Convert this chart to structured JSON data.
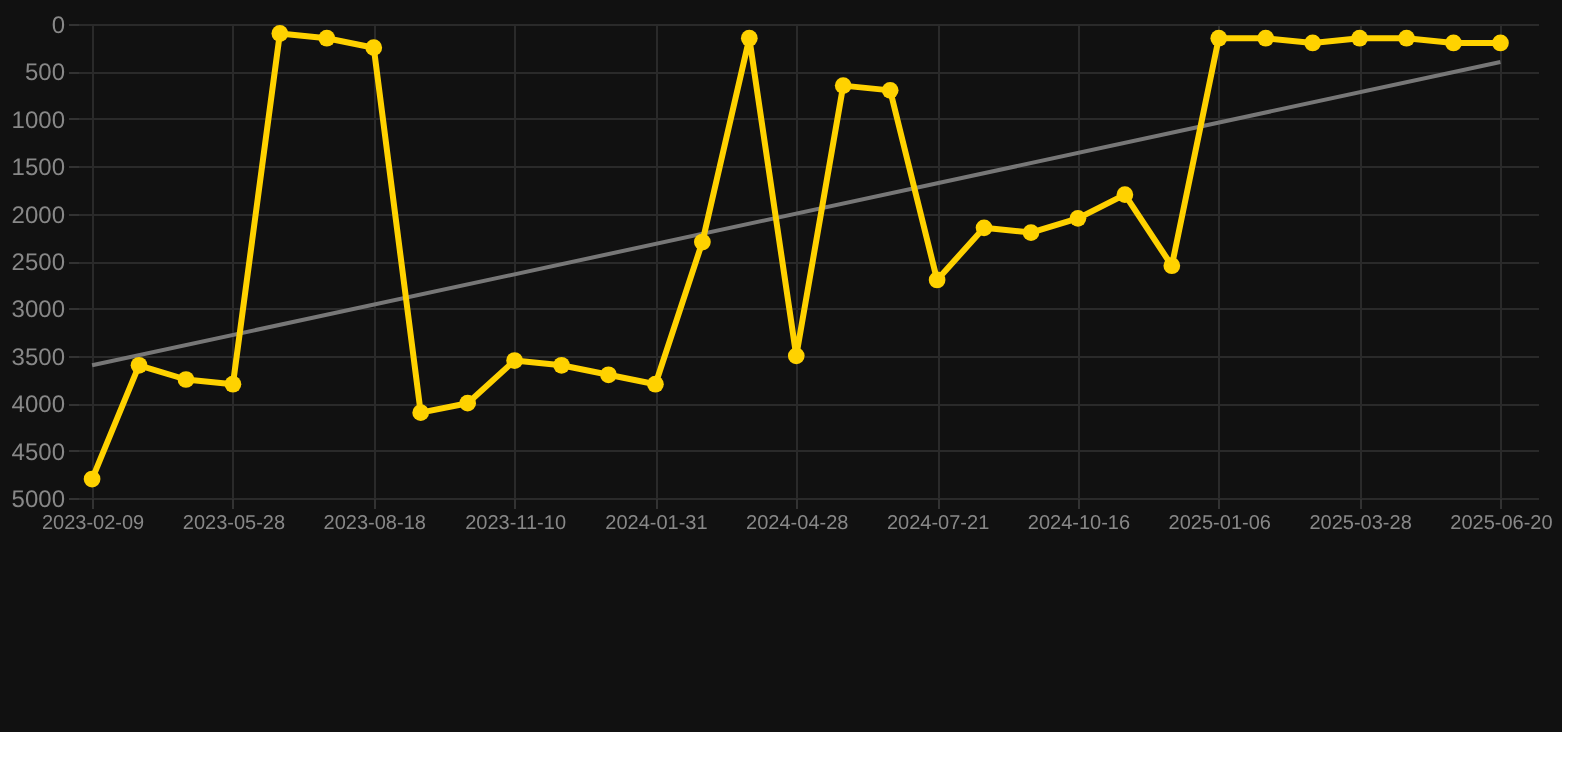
{
  "chart_data": {
    "type": "line",
    "categories": [
      "2023-02-09",
      null,
      null,
      "2023-05-28",
      null,
      null,
      "2023-08-18",
      null,
      null,
      "2023-11-10",
      null,
      null,
      "2024-01-31",
      null,
      null,
      "2024-04-28",
      null,
      null,
      "2024-07-21",
      null,
      null,
      "2024-10-16",
      null,
      null,
      "2025-01-06",
      null,
      null,
      "2025-03-28",
      null,
      null,
      "2025-06-20"
    ],
    "series": [
      {
        "color": "#ffd200",
        "values": [
          4800,
          3600,
          3750,
          3800,
          100,
          150,
          250,
          4100,
          4000,
          3550,
          3600,
          3700,
          3800,
          2300,
          150,
          3500,
          650,
          700,
          2700,
          2150,
          2200,
          2050,
          1800,
          2550,
          150,
          150,
          200,
          150,
          150,
          200,
          200
        ],
        "marker": "circle"
      },
      {
        "type": "line",
        "color": "#777777",
        "values": [
          3600,
          null,
          null,
          null,
          null,
          null,
          null,
          null,
          null,
          null,
          null,
          null,
          null,
          null,
          null,
          null,
          null,
          null,
          null,
          null,
          null,
          null,
          null,
          null,
          null,
          null,
          null,
          null,
          null,
          null,
          400
        ],
        "marker": "none"
      }
    ],
    "ylim": [
      5000,
      0
    ],
    "yticks": [
      0,
      500,
      1000,
      1500,
      2000,
      2500,
      3000,
      3500,
      4000,
      4500,
      5000
    ],
    "grid": true
  }
}
